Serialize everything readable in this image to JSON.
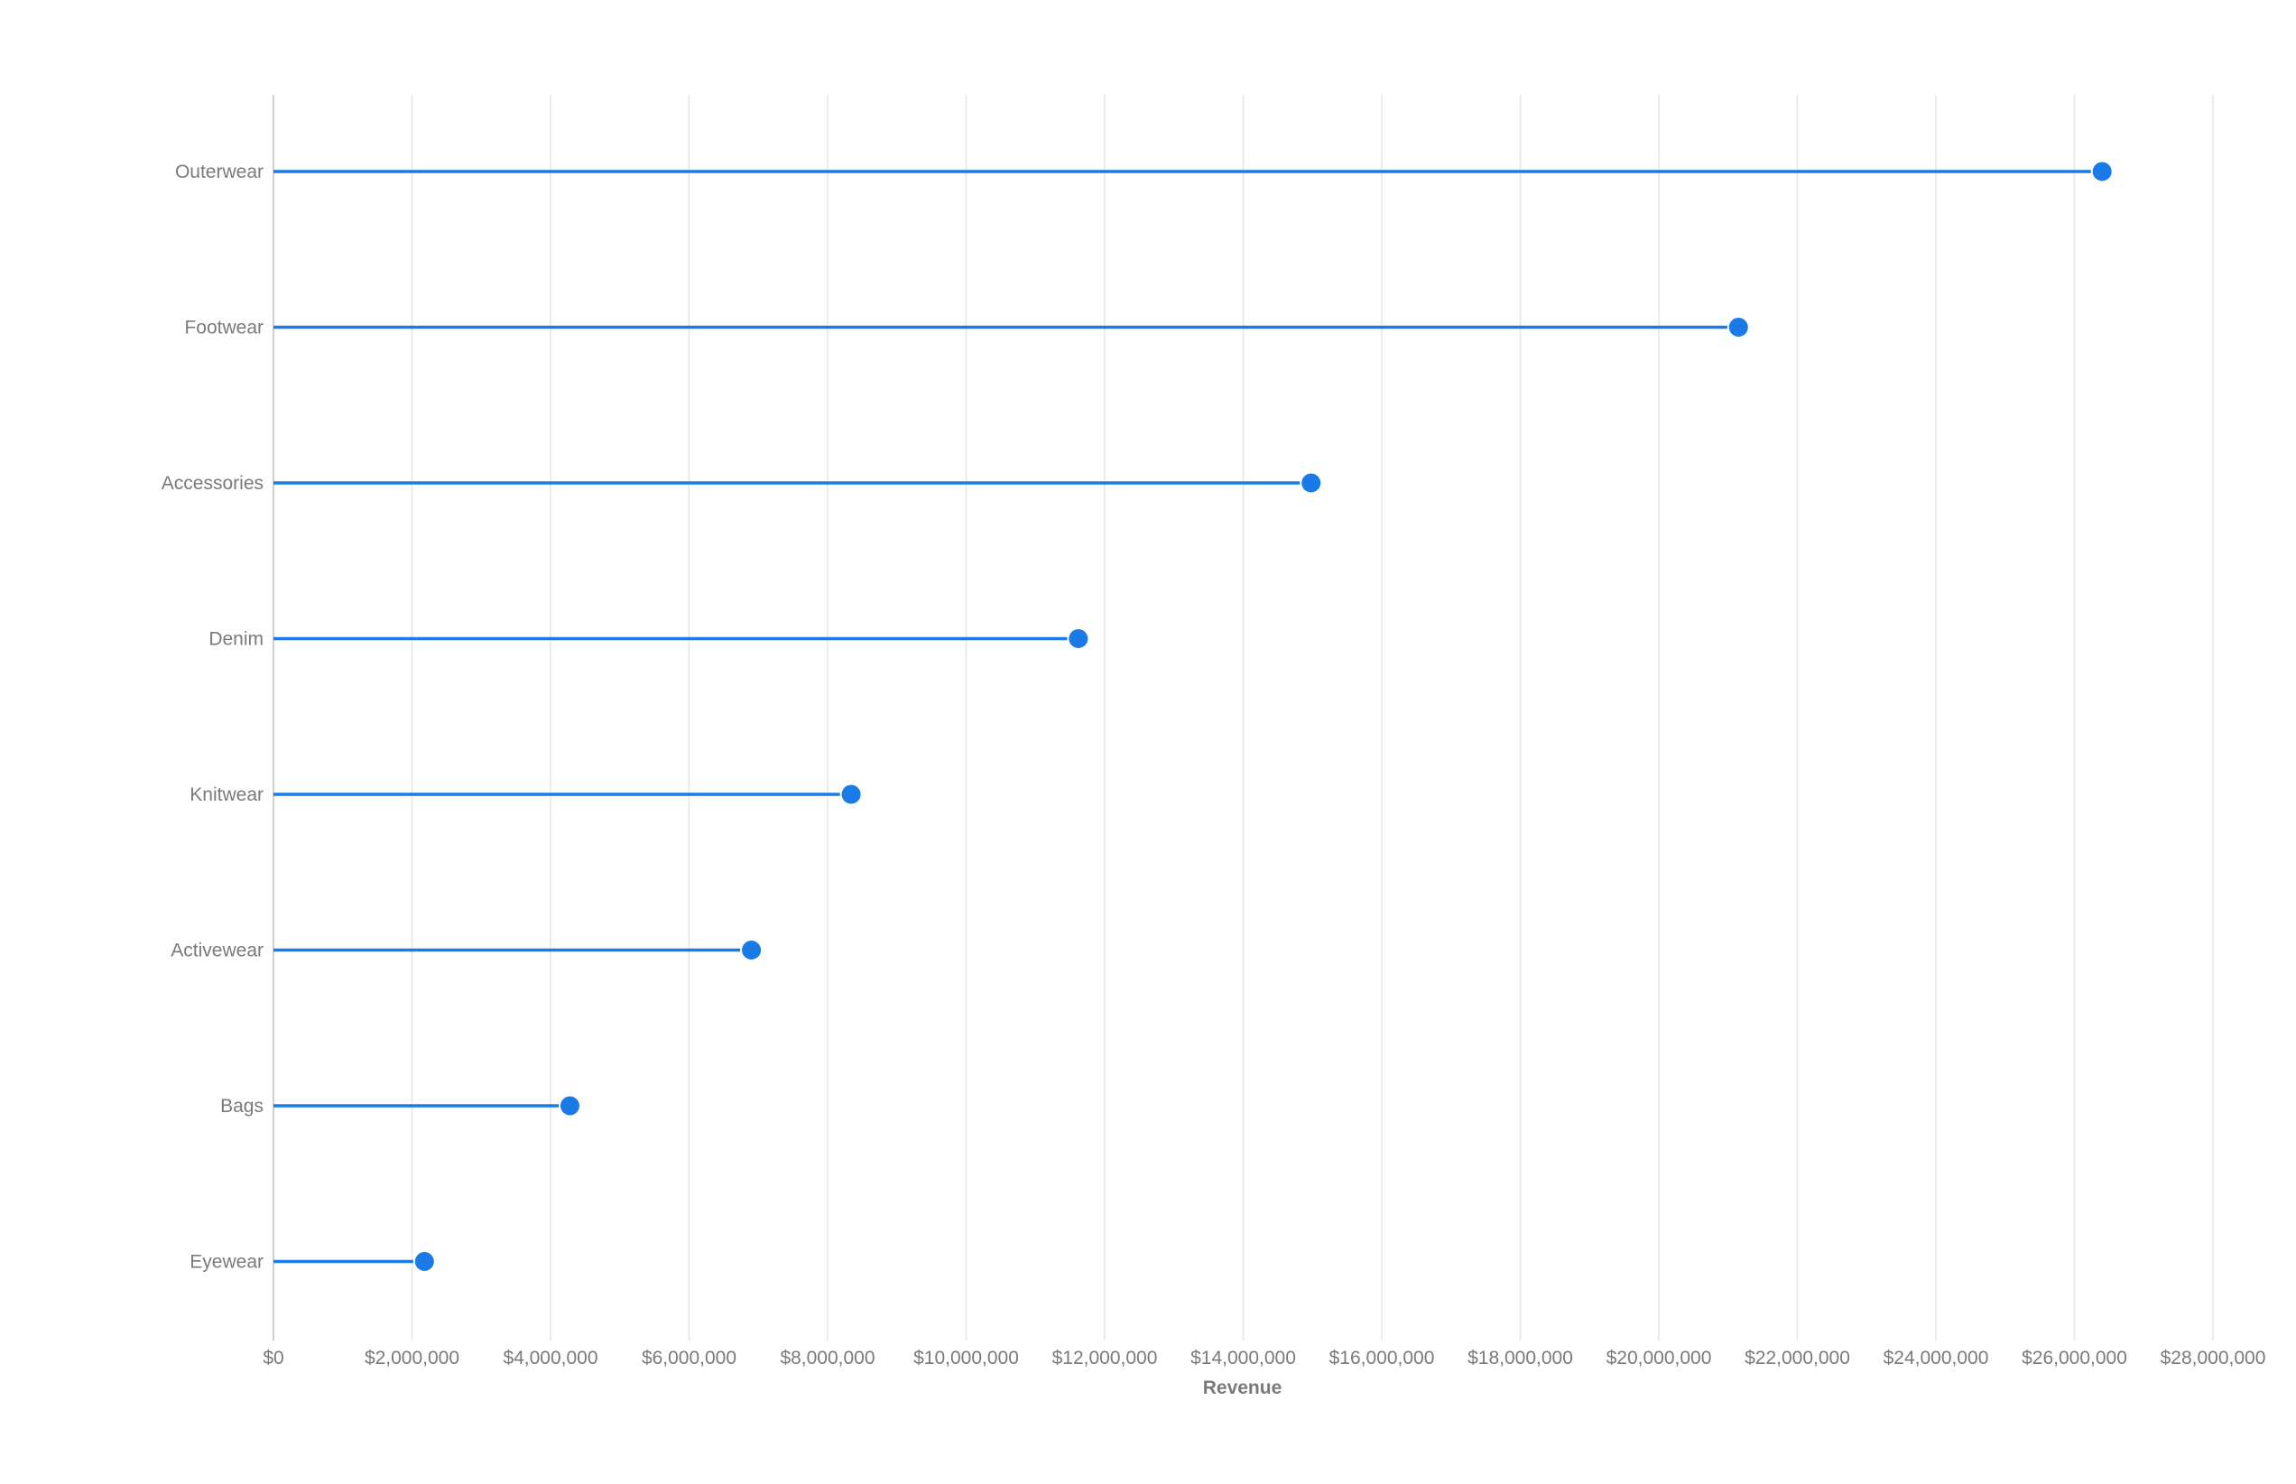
{
  "chart_data": {
    "type": "lollipop",
    "title": "",
    "xlabel": "Revenue",
    "ylabel": "",
    "xlim": [
      0,
      28000000
    ],
    "x_ticks": [
      0,
      2000000,
      4000000,
      6000000,
      8000000,
      10000000,
      12000000,
      14000000,
      16000000,
      18000000,
      20000000,
      22000000,
      24000000,
      26000000,
      28000000
    ],
    "x_tick_labels": [
      "$0",
      "$2,000,000",
      "$4,000,000",
      "$6,000,000",
      "$8,000,000",
      "$10,000,000",
      "$12,000,000",
      "$14,000,000",
      "$16,000,000",
      "$18,000,000",
      "$20,000,000",
      "$22,000,000",
      "$24,000,000",
      "$26,000,000",
      "$28,000,000"
    ],
    "categories": [
      "Outerwear",
      "Footwear",
      "Accessories",
      "Denim",
      "Knitwear",
      "Activewear",
      "Bags",
      "Eyewear"
    ],
    "values": [
      26400000,
      21150000,
      14980000,
      11620000,
      8340000,
      6900000,
      4280000,
      2180000
    ],
    "grid": true,
    "color": "#1a7ae6"
  }
}
